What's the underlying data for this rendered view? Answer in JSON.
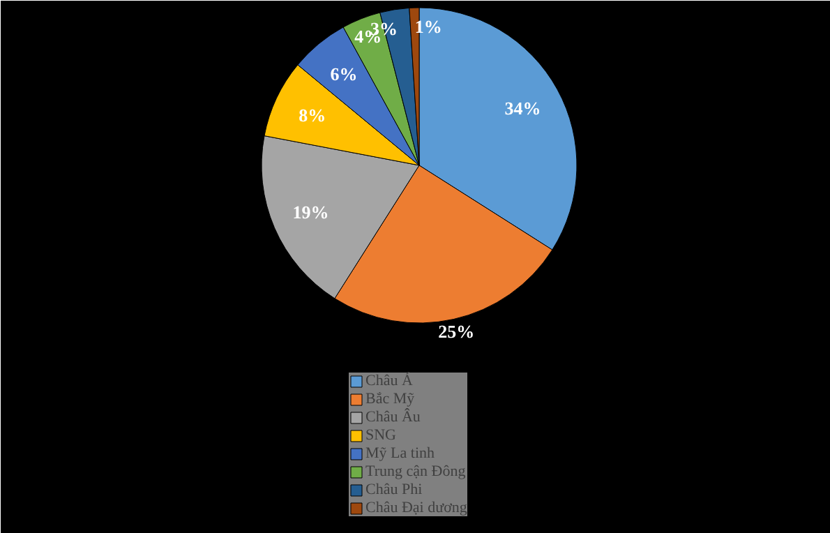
{
  "chart_data": {
    "type": "pie",
    "categories": [
      "Châu Á",
      "Bắc Mỹ",
      "Châu Âu",
      "SNG",
      "Mỹ La tinh",
      "Trung cận Đông",
      "Châu Phi",
      "Châu Đại dương"
    ],
    "values": [
      34,
      25,
      19,
      8,
      6,
      4,
      3,
      1
    ],
    "colors": [
      "#5b9bd5",
      "#ed7d31",
      "#a5a5a5",
      "#ffc000",
      "#4472c4",
      "#70ad47",
      "#255e91",
      "#9e480e"
    ],
    "value_labels": [
      "34%",
      "25%",
      "19%",
      "8%",
      "6%",
      "4%",
      "3%",
      "1%"
    ],
    "legend": "bottom"
  }
}
